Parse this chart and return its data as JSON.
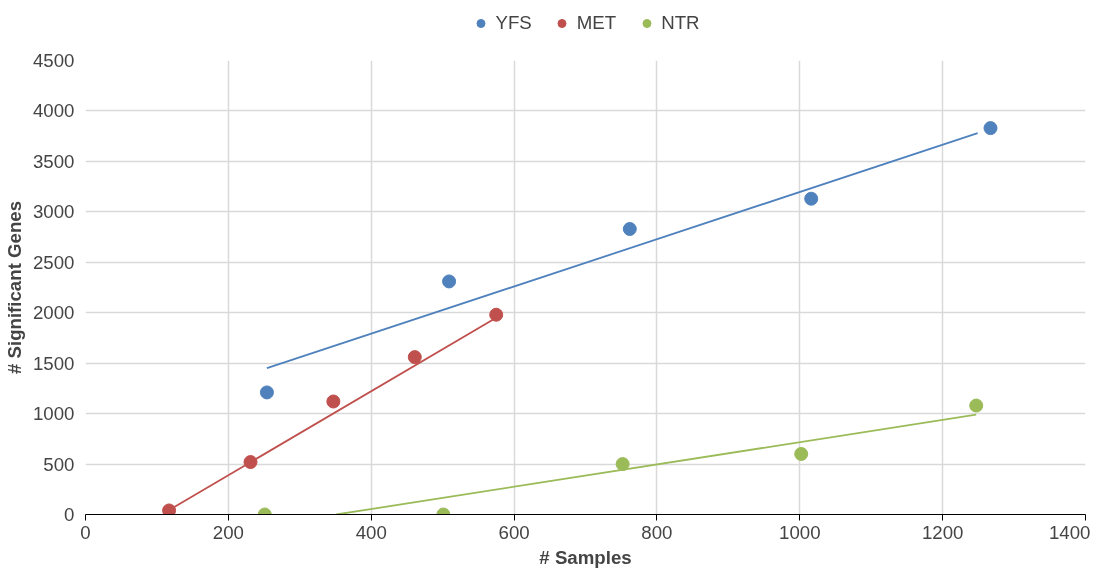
{
  "chart_data": {
    "type": "scatter",
    "xlabel": "# Samples",
    "ylabel": "# Significant Genes",
    "xlim": [
      0,
      1400
    ],
    "xticks": [
      0,
      200,
      400,
      600,
      800,
      1000,
      1200,
      1400
    ],
    "ylim": [
      0,
      4500
    ],
    "yticks": [
      0,
      500,
      1000,
      1500,
      2000,
      2500,
      3000,
      3500,
      4000,
      4500
    ],
    "grid": true,
    "legend": "top",
    "marker": "circle",
    "series": [
      {
        "name": "YFS",
        "color": "#4f81bd",
        "x": [
          254,
          509,
          762,
          1016,
          1267
        ],
        "values": [
          1210,
          2310,
          2830,
          3130,
          3830
        ]
      },
      {
        "name": "MET",
        "color": "#c0504d",
        "x": [
          117,
          231,
          347,
          461,
          575
        ],
        "values": [
          40,
          520,
          1120,
          1560,
          1980
        ]
      },
      {
        "name": "NTR",
        "color": "#9bbb59",
        "x": [
          251,
          501,
          752,
          1002,
          1247
        ],
        "values": [
          0,
          0,
          500,
          600,
          1080
        ]
      },
      {
        "color": "#4f81bd",
        "type": "line",
        "marker": "none",
        "x": [
          254,
          1249
        ],
        "values": [
          1450,
          3780
        ]
      },
      {
        "color": "#c0504d",
        "type": "line",
        "marker": "none",
        "x": [
          116,
          575
        ],
        "values": [
          40,
          1950
        ]
      },
      {
        "color": "#9bbb59",
        "type": "line",
        "marker": "none",
        "x": [
          351,
          1247
        ],
        "values": [
          0,
          990
        ]
      }
    ]
  }
}
